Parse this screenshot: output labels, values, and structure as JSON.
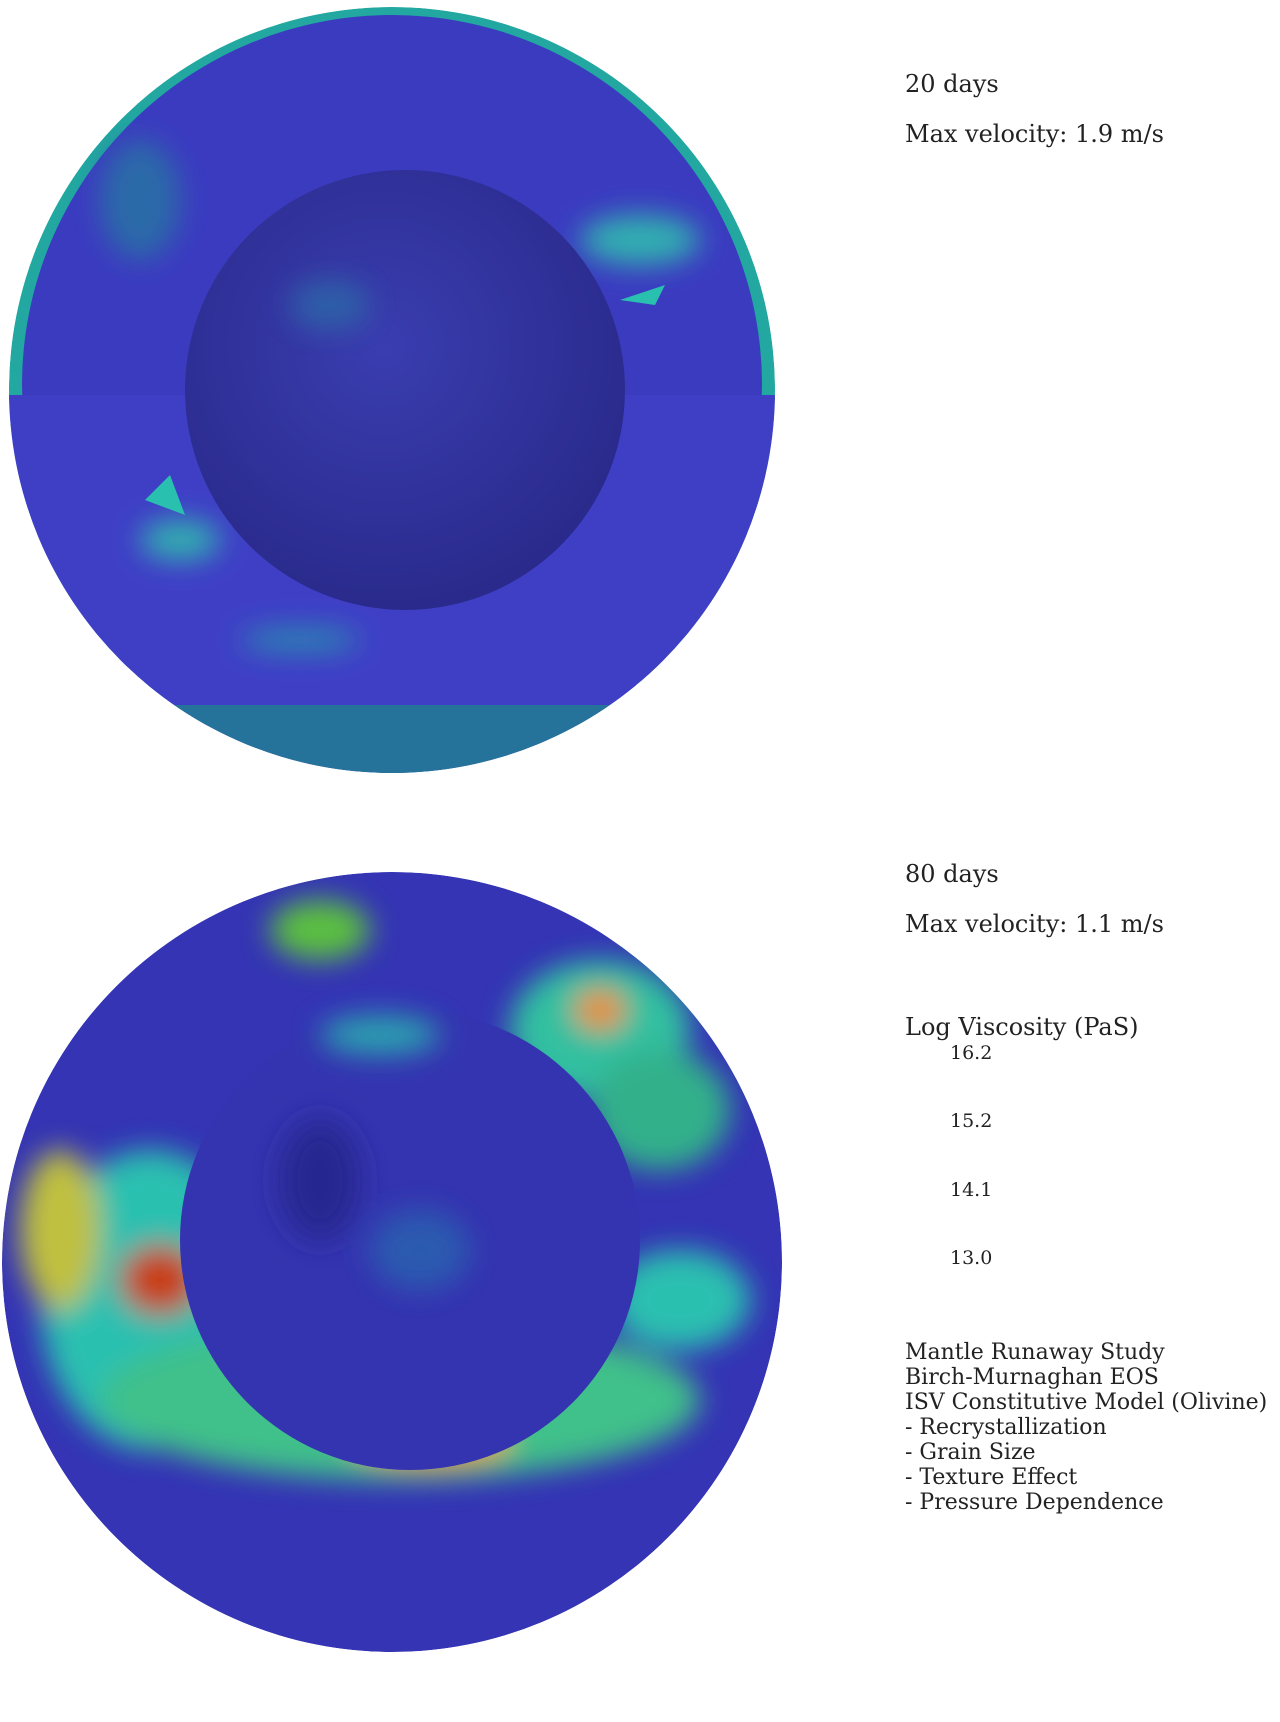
{
  "panels": [
    {
      "time": "20 days",
      "velocity": "Max velocity: 1.9 m/s"
    },
    {
      "time": "80 days",
      "velocity": "Max velocity: 1.1 m/s"
    }
  ],
  "colorbar": {
    "title": "Log Viscosity (PaS)",
    "ticks": [
      "16.2",
      "15.2",
      "14.1",
      "13.0"
    ]
  },
  "notes": [
    "Mantle Runaway Study",
    "Birch-Murnaghan EOS",
    "ISV Constitutive Model (Olivine)",
    "- Recrystallization",
    "- Grain Size",
    "- Texture Effect",
    "- Pressure Dependence"
  ]
}
